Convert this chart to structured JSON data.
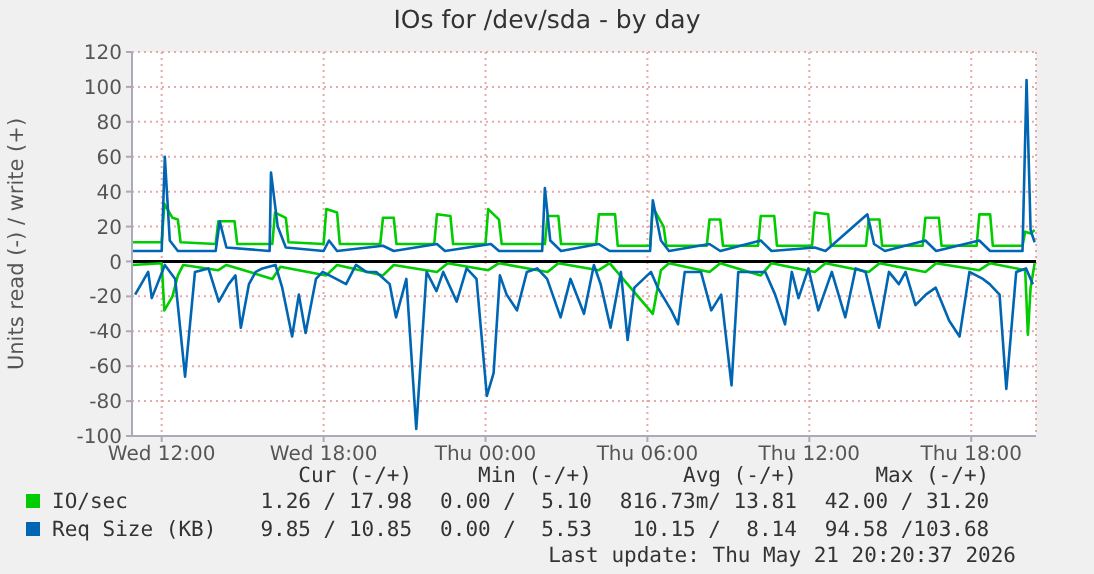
{
  "chart_data": {
    "type": "line",
    "title": "IOs for /dev/sda - by day",
    "ylabel": "Units read (-) / write (+)",
    "xlim": [
      "2026-05-20T10:54",
      "2026-05-21T20:24"
    ],
    "xticks": [
      {
        "value": "2026-05-20T12:00",
        "label": "Wed 12:00"
      },
      {
        "value": "2026-05-20T18:00",
        "label": "Wed 18:00"
      },
      {
        "value": "2026-05-21T00:00",
        "label": "Thu 00:00"
      },
      {
        "value": "2026-05-21T06:00",
        "label": "Thu 06:00"
      },
      {
        "value": "2026-05-21T12:00",
        "label": "Thu 12:00"
      },
      {
        "value": "2026-05-21T18:00",
        "label": "Thu 18:00"
      }
    ],
    "ylim": [
      -100,
      120
    ],
    "yticks": [
      -100,
      -80,
      -60,
      -40,
      -20,
      0,
      20,
      40,
      60,
      80,
      100,
      120
    ],
    "grid": true,
    "legend": "bottom",
    "ref_lines": [
      {
        "axis": "y",
        "value": 0,
        "color": "#000000"
      }
    ],
    "series": [
      {
        "name": "IO/sec",
        "color": "#00cc00",
        "x": [
          "2026-05-20T10:54",
          "2026-05-20T12:00",
          "2026-05-20T12:06",
          "2026-05-20T12:24",
          "2026-05-20T12:36",
          "2026-05-20T12:42",
          "2026-05-20T14:00",
          "2026-05-20T14:06",
          "2026-05-20T14:42",
          "2026-05-20T14:48",
          "2026-05-20T16:06",
          "2026-05-20T16:12",
          "2026-05-20T16:36",
          "2026-05-20T16:42",
          "2026-05-20T18:00",
          "2026-05-20T18:06",
          "2026-05-20T18:30",
          "2026-05-20T18:36",
          "2026-05-20T20:06",
          "2026-05-20T20:12",
          "2026-05-20T20:36",
          "2026-05-20T20:42",
          "2026-05-20T22:06",
          "2026-05-20T22:12",
          "2026-05-20T22:42",
          "2026-05-20T22:48",
          "2026-05-21T00:00",
          "2026-05-21T00:06",
          "2026-05-21T00:30",
          "2026-05-21T00:36",
          "2026-05-21T02:12",
          "2026-05-21T02:18",
          "2026-05-21T02:42",
          "2026-05-21T02:48",
          "2026-05-21T04:06",
          "2026-05-21T04:12",
          "2026-05-21T04:48",
          "2026-05-21T04:54",
          "2026-05-21T06:06",
          "2026-05-21T06:12",
          "2026-05-21T06:36",
          "2026-05-21T06:42",
          "2026-05-21T08:12",
          "2026-05-21T08:18",
          "2026-05-21T08:42",
          "2026-05-21T08:48",
          "2026-05-21T10:06",
          "2026-05-21T10:12",
          "2026-05-21T10:42",
          "2026-05-21T10:48",
          "2026-05-21T12:06",
          "2026-05-21T12:12",
          "2026-05-21T12:42",
          "2026-05-21T12:48",
          "2026-05-21T14:06",
          "2026-05-21T14:12",
          "2026-05-21T14:36",
          "2026-05-21T14:42",
          "2026-05-21T16:12",
          "2026-05-21T16:18",
          "2026-05-21T16:48",
          "2026-05-21T16:54",
          "2026-05-21T18:12",
          "2026-05-21T18:18",
          "2026-05-21T18:42",
          "2026-05-21T18:48",
          "2026-05-21T19:54",
          "2026-05-21T20:00",
          "2026-05-21T20:12",
          "2026-05-21T20:21"
        ],
        "values": [
          11,
          11,
          33,
          25,
          24,
          11,
          10,
          23,
          23,
          10,
          10,
          28,
          25,
          11,
          10,
          30,
          28,
          10,
          10,
          25,
          25,
          10,
          10,
          27,
          26,
          10,
          10,
          30,
          24,
          10,
          10,
          26,
          26,
          10,
          10,
          27,
          27,
          9,
          9,
          31,
          20,
          9,
          9,
          24,
          24,
          9,
          9,
          26,
          26,
          9,
          9,
          28,
          27,
          9,
          9,
          24,
          24,
          9,
          9,
          25,
          25,
          9,
          9,
          27,
          27,
          9,
          9,
          17,
          16,
          18
        ]
      },
      {
        "color": "#00cc00",
        "x": [
          "2026-05-20T10:54",
          "2026-05-20T12:00",
          "2026-05-20T12:06",
          "2026-05-20T12:24",
          "2026-05-20T12:36",
          "2026-05-20T12:48",
          "2026-05-20T14:06",
          "2026-05-20T14:24",
          "2026-05-20T16:06",
          "2026-05-20T16:24",
          "2026-05-20T18:06",
          "2026-05-20T18:30",
          "2026-05-20T20:12",
          "2026-05-20T20:36",
          "2026-05-20T22:12",
          "2026-05-20T22:36",
          "2026-05-21T00:06",
          "2026-05-21T00:30",
          "2026-05-21T02:18",
          "2026-05-21T02:42",
          "2026-05-21T04:12",
          "2026-05-21T04:36",
          "2026-05-21T06:12",
          "2026-05-21T06:30",
          "2026-05-21T06:48",
          "2026-05-21T08:18",
          "2026-05-21T08:42",
          "2026-05-21T10:12",
          "2026-05-21T10:36",
          "2026-05-21T12:12",
          "2026-05-21T12:36",
          "2026-05-21T14:12",
          "2026-05-21T14:36",
          "2026-05-21T16:18",
          "2026-05-21T16:42",
          "2026-05-21T18:18",
          "2026-05-21T18:42",
          "2026-05-21T20:00",
          "2026-05-21T20:06",
          "2026-05-21T20:12",
          "2026-05-21T20:21"
        ],
        "values": [
          -2,
          -1,
          -28,
          -20,
          -8,
          -2,
          -5,
          -2,
          -10,
          -3,
          -8,
          -2,
          -8,
          -2,
          -6,
          -1,
          -5,
          -1,
          -6,
          -1,
          -5,
          -1,
          -30,
          -5,
          -1,
          -6,
          -1,
          -8,
          -1,
          -6,
          -1,
          -6,
          -1,
          -6,
          -1,
          -5,
          -1,
          -5,
          -42,
          -15,
          -1
        ]
      },
      {
        "name": "Req Size (KB)",
        "color": "#0066b3",
        "x": [
          "2026-05-20T10:54",
          "2026-05-20T12:00",
          "2026-05-20T12:07",
          "2026-05-20T12:18",
          "2026-05-20T12:36",
          "2026-05-20T14:00",
          "2026-05-20T14:09",
          "2026-05-20T14:24",
          "2026-05-20T16:00",
          "2026-05-20T16:03",
          "2026-05-20T16:18",
          "2026-05-20T16:36",
          "2026-05-20T18:00",
          "2026-05-20T18:12",
          "2026-05-20T18:30",
          "2026-05-20T20:12",
          "2026-05-20T20:36",
          "2026-05-20T22:12",
          "2026-05-20T22:30",
          "2026-05-21T00:12",
          "2026-05-21T00:30",
          "2026-05-21T02:06",
          "2026-05-21T02:12",
          "2026-05-21T02:24",
          "2026-05-21T02:48",
          "2026-05-21T04:12",
          "2026-05-21T04:36",
          "2026-05-21T06:06",
          "2026-05-21T06:12",
          "2026-05-21T06:30",
          "2026-05-21T06:48",
          "2026-05-21T08:18",
          "2026-05-21T08:42",
          "2026-05-21T10:12",
          "2026-05-21T10:36",
          "2026-05-21T12:12",
          "2026-05-21T12:36",
          "2026-05-21T14:09",
          "2026-05-21T14:24",
          "2026-05-21T14:48",
          "2026-05-21T16:18",
          "2026-05-21T16:42",
          "2026-05-21T18:18",
          "2026-05-21T18:42",
          "2026-05-21T19:54",
          "2026-05-21T20:03",
          "2026-05-21T20:12",
          "2026-05-21T20:21"
        ],
        "values": [
          6,
          6,
          60,
          12,
          6,
          6,
          23,
          8,
          6,
          51,
          20,
          8,
          6,
          12,
          6,
          9,
          6,
          10,
          6,
          10,
          6,
          6,
          42,
          12,
          6,
          10,
          6,
          6,
          35,
          12,
          6,
          10,
          6,
          12,
          6,
          8,
          6,
          27,
          10,
          6,
          12,
          6,
          12,
          6,
          6,
          104,
          18,
          11
        ]
      },
      {
        "color": "#0066b3",
        "x": [
          "2026-05-20T11:01",
          "2026-05-20T11:30",
          "2026-05-20T11:38",
          "2026-05-20T12:07",
          "2026-05-20T12:30",
          "2026-05-20T12:52",
          "2026-05-20T13:14",
          "2026-05-20T13:44",
          "2026-05-20T14:07",
          "2026-05-20T14:29",
          "2026-05-20T14:44",
          "2026-05-20T14:56",
          "2026-05-20T15:14",
          "2026-05-20T15:29",
          "2026-05-20T15:44",
          "2026-05-20T16:13",
          "2026-05-20T16:28",
          "2026-05-20T16:50",
          "2026-05-20T17:05",
          "2026-05-20T17:20",
          "2026-05-20T17:43",
          "2026-05-20T17:58",
          "2026-05-20T18:28",
          "2026-05-20T18:50",
          "2026-05-20T19:12",
          "2026-05-20T19:35",
          "2026-05-20T19:57",
          "2026-05-20T20:27",
          "2026-05-20T20:41",
          "2026-05-20T21:04",
          "2026-05-20T21:26",
          "2026-05-20T21:49",
          "2026-05-20T22:11",
          "2026-05-20T22:26",
          "2026-05-20T22:56",
          "2026-05-20T23:18",
          "2026-05-20T23:40",
          "2026-05-21T00:03",
          "2026-05-21T00:18",
          "2026-05-21T00:32",
          "2026-05-21T00:47",
          "2026-05-21T01:10",
          "2026-05-21T01:32",
          "2026-05-21T01:55",
          "2026-05-21T02:17",
          "2026-05-21T02:32",
          "2026-05-21T02:47",
          "2026-05-21T03:09",
          "2026-05-21T03:39",
          "2026-05-21T04:01",
          "2026-05-21T04:16",
          "2026-05-21T04:38",
          "2026-05-21T05:01",
          "2026-05-21T05:16",
          "2026-05-21T05:31",
          "2026-05-21T06:08",
          "2026-05-21T06:23",
          "2026-05-21T06:53",
          "2026-05-21T07:08",
          "2026-05-21T07:23",
          "2026-05-21T07:59",
          "2026-05-21T08:22",
          "2026-05-21T08:44",
          "2026-05-21T09:07",
          "2026-05-21T09:22",
          "2026-05-21T09:52",
          "2026-05-21T10:22",
          "2026-05-21T10:44",
          "2026-05-21T11:06",
          "2026-05-21T11:21",
          "2026-05-21T11:36",
          "2026-05-21T11:58",
          "2026-05-21T12:20",
          "2026-05-21T12:50",
          "2026-05-21T13:20",
          "2026-05-21T13:43",
          "2026-05-21T14:05",
          "2026-05-21T14:35",
          "2026-05-21T14:57",
          "2026-05-21T15:19",
          "2026-05-21T15:34",
          "2026-05-21T15:56",
          "2026-05-21T16:19",
          "2026-05-21T16:41",
          "2026-05-21T17:11",
          "2026-05-21T17:34",
          "2026-05-21T17:56",
          "2026-05-21T18:26",
          "2026-05-21T18:41",
          "2026-05-21T19:03",
          "2026-05-21T19:18",
          "2026-05-21T19:40",
          "2026-05-21T20:02",
          "2026-05-21T20:17"
        ],
        "values": [
          -19,
          -6,
          -21,
          -2,
          -10,
          -66,
          -6,
          -4,
          -23,
          -13,
          -8,
          -38,
          -13,
          -6,
          -4,
          -2,
          -15,
          -43,
          -19,
          -41,
          -10,
          -6,
          -10,
          -13,
          -2,
          -6,
          -6,
          -13,
          -32,
          -10,
          -96,
          -6,
          -17,
          -6,
          -23,
          -4,
          -10,
          -77,
          -64,
          -8,
          -19,
          -28,
          -6,
          -4,
          -10,
          -21,
          -32,
          -10,
          -30,
          -2,
          -13,
          -38,
          -6,
          -45,
          -15,
          -6,
          -15,
          -28,
          -36,
          -6,
          -6,
          -28,
          -19,
          -71,
          -6,
          -6,
          -6,
          -19,
          -36,
          -6,
          -21,
          -4,
          -28,
          -6,
          -32,
          -4,
          -6,
          -38,
          -6,
          -13,
          -6,
          -25,
          -19,
          -15,
          -34,
          -43,
          -6,
          -10,
          -13,
          -19,
          -73,
          -6,
          -4,
          -13
        ]
      }
    ],
    "annotations": [
      "Cur (-/+)",
      "Min (-/+)",
      "Avg (-/+)",
      "Max (-/+)",
      "1.26 / 17.98",
      "0.00 /  5.10",
      "816.73m/ 13.81",
      "42.00 / 31.20",
      "9.85 / 10.85",
      "0.00 /  5.53",
      "10.15 /  8.14",
      "94.58 /103.68",
      "Last update: Thu May 21 20:20:37 2026"
    ]
  }
}
